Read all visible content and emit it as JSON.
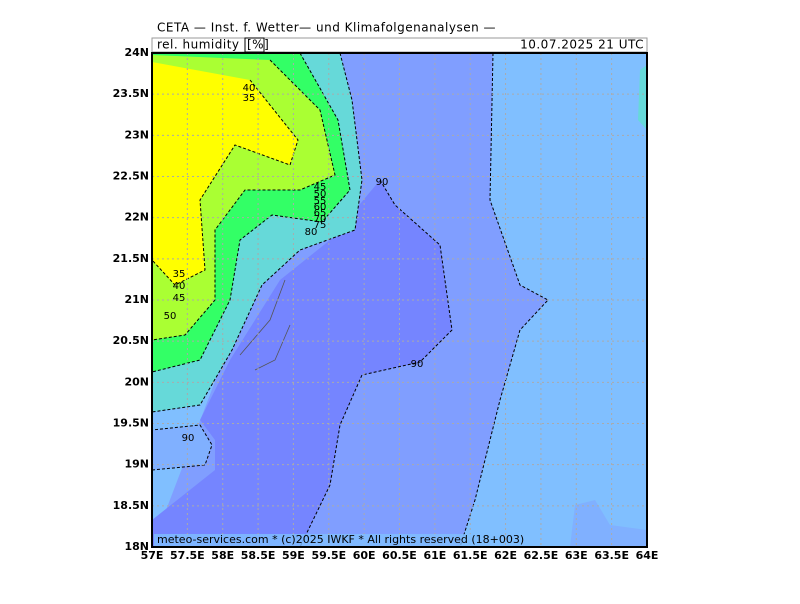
{
  "header": {
    "title": "CETA — Inst. f. Wetter— und Klimafolgenanalysen —",
    "variable": "rel. humidity",
    "unit": "[%]",
    "valid_time": "10.07.2025 21 UTC"
  },
  "map": {
    "x_labels": [
      "57E",
      "57.5E",
      "58E",
      "58.5E",
      "59E",
      "59.5E",
      "60E",
      "60.5E",
      "61E",
      "61.5E",
      "62E",
      "62.5E",
      "63E",
      "63.5E",
      "64E"
    ],
    "y_labels": [
      "24N",
      "23.5N",
      "23N",
      "22.5N",
      "22N",
      "21.5N",
      "21N",
      "20.5N",
      "20N",
      "19.5N",
      "19N",
      "18.5N",
      "18N"
    ],
    "contour_labels": [
      40,
      35,
      90,
      45,
      50,
      55,
      60,
      65,
      70,
      75,
      80,
      35,
      40,
      45,
      50,
      90,
      90
    ]
  },
  "footer": {
    "credit": "meteo-services.com * (c)2025 IWKF * All rights reserved (18+003)"
  }
}
